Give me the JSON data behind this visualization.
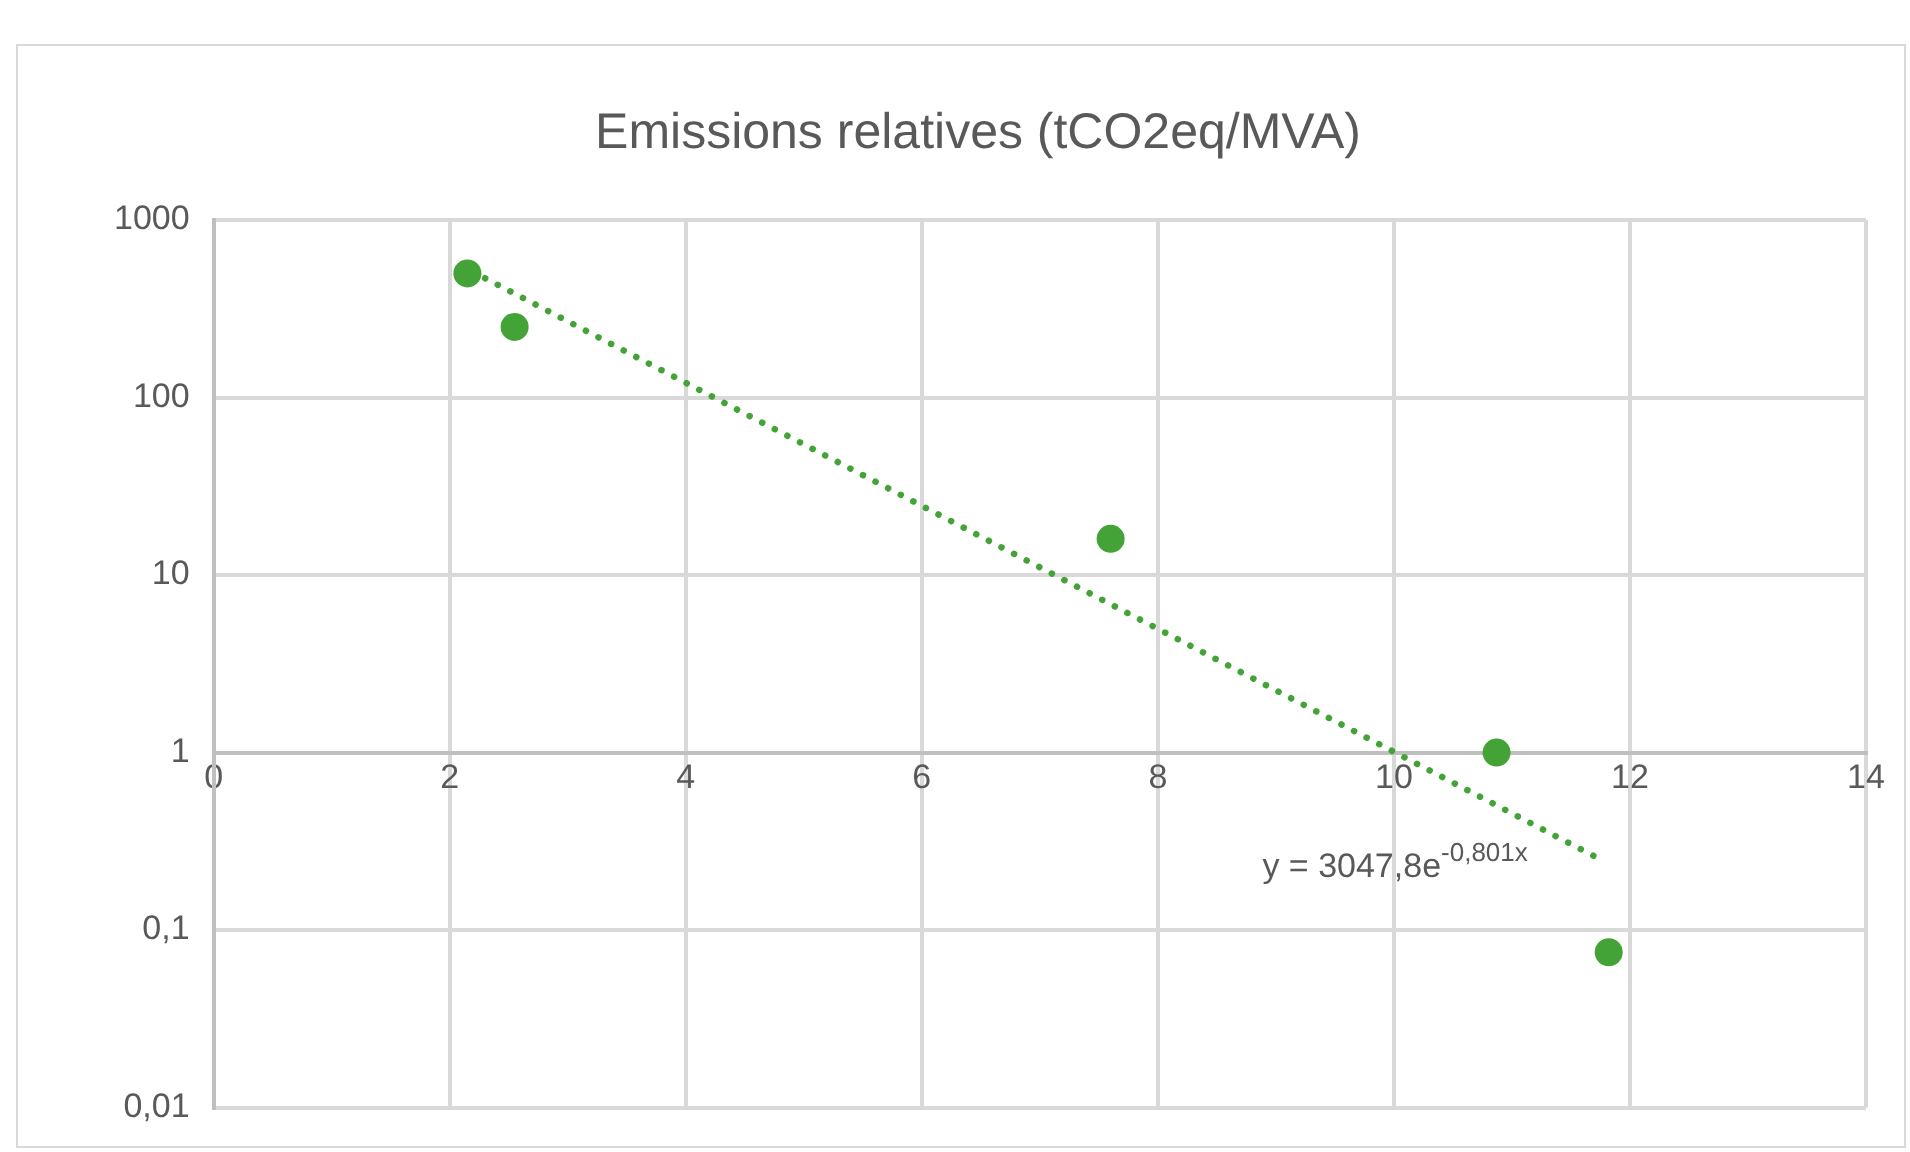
{
  "chart_data": {
    "type": "scatter",
    "title": "Emissions relatives (tCO2eq/MVA)",
    "series": [
      {
        "color": "#43a336",
        "x": [
          2.15,
          2.55,
          7.6,
          10.87,
          11.82
        ],
        "values": [
          500,
          250,
          16,
          1,
          0.075
        ]
      },
      {
        "type": "line",
        "color": "#43a336",
        "x": [
          2.3,
          11.75
        ],
        "values": [
          470,
          0.25
        ],
        "line_style": "dotted",
        "marker": "none"
      }
    ],
    "xlim": [
      0,
      14
    ],
    "xticks": [
      0,
      2,
      4,
      6,
      8,
      10,
      12,
      14
    ],
    "ylim": [
      0.01,
      1000
    ],
    "yticks": [
      1000,
      100,
      10,
      1,
      {
        "value": 0.1,
        "label": "0,1"
      },
      {
        "value": 0.01,
        "label": "0,01"
      }
    ],
    "log": "y",
    "grid": true,
    "legend": false,
    "marker": "circle",
    "annotations": [
      "y = 3047,8e$^{-0,801x}$"
    ]
  }
}
